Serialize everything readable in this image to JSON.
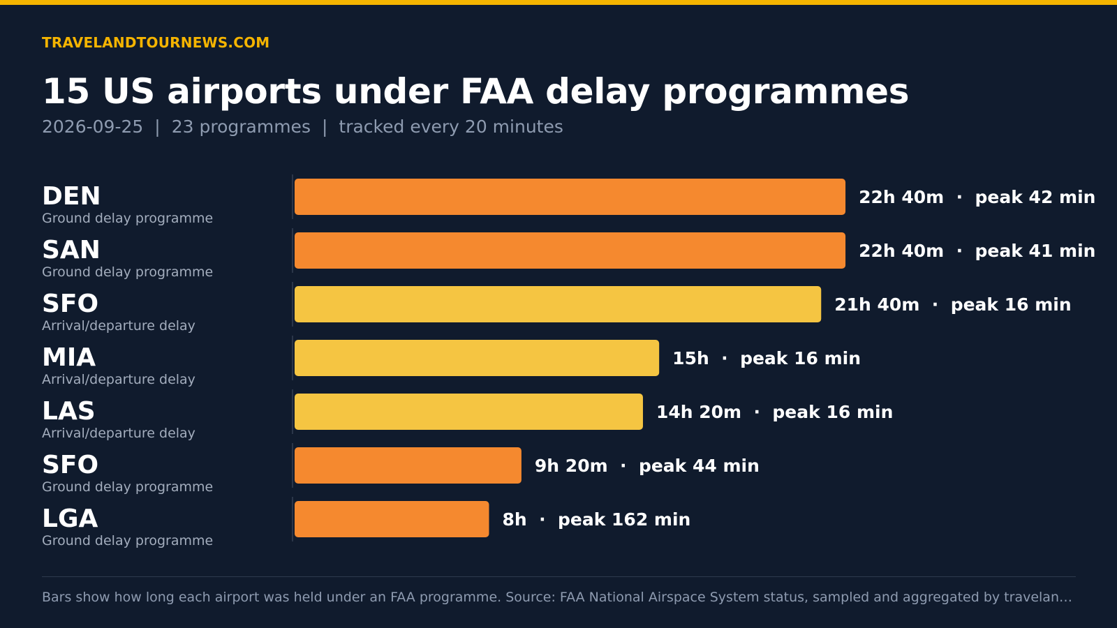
{
  "header": {
    "source": "TRAVELANDTOURNEWS.COM",
    "title": "15 US airports under FAA delay programmes",
    "subtitle": {
      "date": "2026-09-25",
      "separator": "|",
      "programmes": "23 programmes",
      "tracking": "tracked every 20 minutes"
    }
  },
  "colors": {
    "ground_delay": "#f5892f",
    "arrival_departure_delay": "#f5c542",
    "accent": "#f5b400",
    "background": "#101b2d"
  },
  "chart_data": {
    "type": "bar",
    "orientation": "horizontal",
    "unit": "minutes",
    "xlim": [
      0,
      1400
    ],
    "grid": false,
    "categories": [
      "DEN",
      "SAN",
      "SFO",
      "MIA",
      "LAS",
      "SFO",
      "LGA"
    ],
    "subcategories": [
      "Ground delay programme",
      "Ground delay programme",
      "Arrival/departure delay",
      "Arrival/departure delay",
      "Arrival/departure delay",
      "Ground delay programme",
      "Ground delay programme"
    ],
    "values": [
      1360,
      1360,
      1300,
      900,
      860,
      560,
      480
    ],
    "data_labels": [
      "22h 40m  ·  peak 42 min",
      "22h 40m  ·  peak 41 min",
      "21h 40m  ·  peak 16 min",
      "15h  ·  peak 16 min",
      "14h 20m  ·  peak 16 min",
      "9h 20m  ·  peak 44 min",
      "8h  ·  peak 162 min"
    ],
    "peak_minutes": [
      42,
      41,
      16,
      16,
      16,
      44,
      162
    ]
  },
  "footer": {
    "note": "Bars show how long each airport was held under an FAA programme. Source: FAA National Airspace System status, sampled and aggregated by travelandtournews.com"
  }
}
